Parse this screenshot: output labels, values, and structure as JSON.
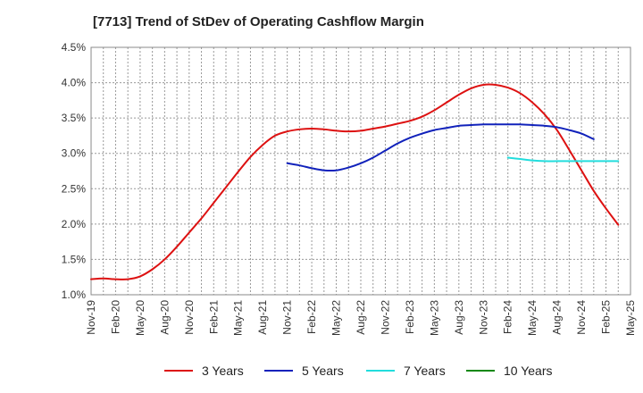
{
  "chart_data": {
    "type": "line",
    "title": "[7713]  Trend of StDev of Operating Cashflow Margin",
    "xlabel": "",
    "ylabel": "",
    "x_ticks": [
      "Nov-19",
      "Feb-20",
      "May-20",
      "Aug-20",
      "Nov-20",
      "Feb-21",
      "May-21",
      "Aug-21",
      "Nov-21",
      "Feb-22",
      "May-22",
      "Aug-22",
      "Nov-22",
      "Feb-23",
      "May-23",
      "Aug-23",
      "Nov-23",
      "Feb-24",
      "May-24",
      "Aug-24",
      "Nov-24",
      "Feb-25",
      "May-25"
    ],
    "y_ticks": [
      "1.0%",
      "1.5%",
      "2.0%",
      "2.5%",
      "3.0%",
      "3.5%",
      "4.0%",
      "4.5%"
    ],
    "ylim": [
      1.0,
      4.5
    ],
    "y_unit": "%",
    "grid": true,
    "legend_position": "bottom",
    "series": [
      {
        "name": "3 Years",
        "color": "#dd1111",
        "values": [
          1.22,
          1.23,
          1.22,
          1.22,
          1.26,
          1.36,
          1.5,
          1.68,
          1.88,
          2.08,
          2.3,
          2.52,
          2.74,
          2.95,
          3.12,
          3.25,
          3.31,
          3.34,
          3.35,
          3.34,
          3.32,
          3.31,
          3.32,
          3.35,
          3.38,
          3.42,
          3.46,
          3.52,
          3.61,
          3.72,
          3.83,
          3.92,
          3.97,
          3.97,
          3.93,
          3.85,
          3.72,
          3.55,
          3.33,
          3.05,
          2.76,
          2.47,
          2.22,
          1.99
        ]
      },
      {
        "name": "5 Years",
        "color": "#1122bb",
        "start_index": 16,
        "values": [
          2.86,
          2.83,
          2.79,
          2.76,
          2.76,
          2.8,
          2.86,
          2.94,
          3.04,
          3.14,
          3.22,
          3.28,
          3.33,
          3.36,
          3.39,
          3.4,
          3.41,
          3.41,
          3.41,
          3.41,
          3.4,
          3.39,
          3.37,
          3.33,
          3.28,
          3.2
        ]
      },
      {
        "name": "7 Years",
        "color": "#22dddd",
        "start_index": 34,
        "values": [
          2.94,
          2.92,
          2.9,
          2.89,
          2.89,
          2.89,
          2.89,
          2.89,
          2.89,
          2.89
        ]
      },
      {
        "name": "10 Years",
        "color": "#118811",
        "values": []
      }
    ]
  }
}
